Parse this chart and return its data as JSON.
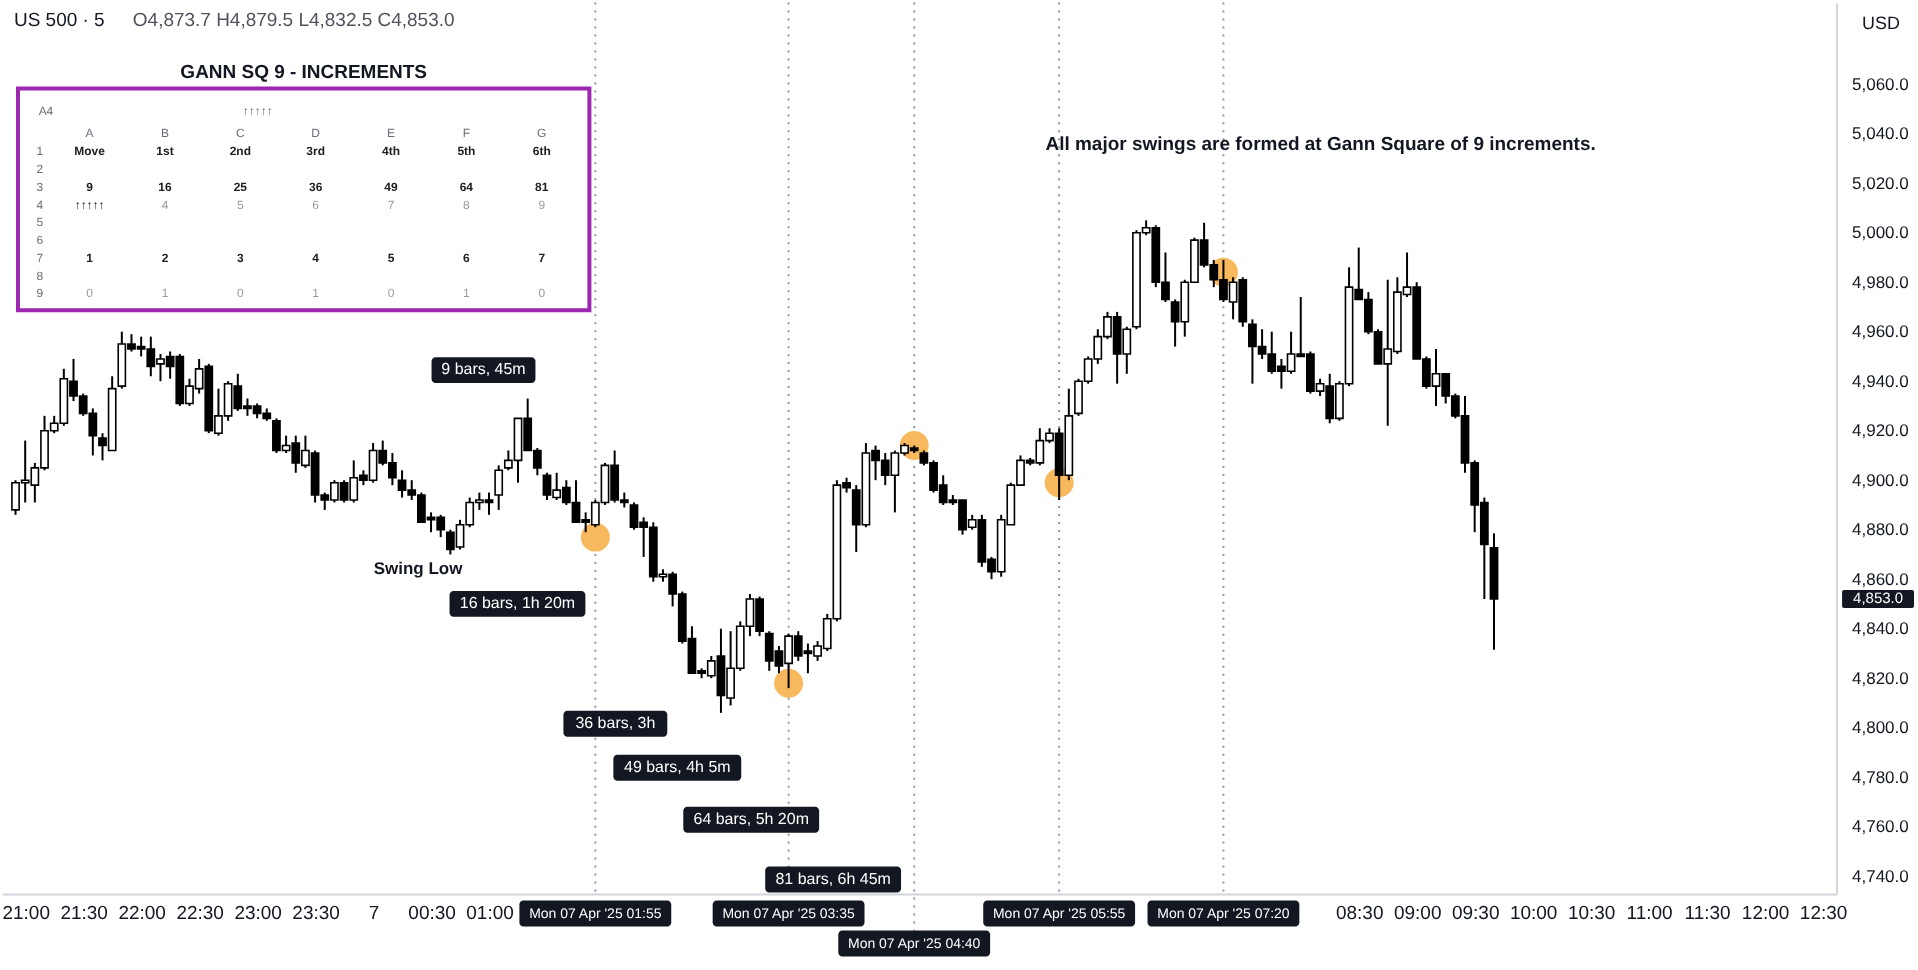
{
  "chart_data": {
    "type": "candlestick",
    "title": "US 500 · 5",
    "subtitle": "O4,873.7  H4,879.5  L4,832.5  C4,853.0",
    "ylabel": "USD",
    "color": "#000000",
    "x": [
      "2025-04-06T20:55",
      "2025-04-06T21:00",
      "2025-04-06T21:05",
      "2025-04-06T21:10",
      "2025-04-06T21:15",
      "2025-04-06T21:20",
      "2025-04-06T21:25",
      "2025-04-06T21:30",
      "2025-04-06T21:35",
      "2025-04-06T21:40",
      "2025-04-06T21:45",
      "2025-04-06T21:50",
      "2025-04-06T21:55",
      "2025-04-06T22:00",
      "2025-04-06T22:05",
      "2025-04-06T22:10",
      "2025-04-06T22:15",
      "2025-04-06T22:20",
      "2025-04-06T22:25",
      "2025-04-06T22:30",
      "2025-04-06T22:35",
      "2025-04-06T22:40",
      "2025-04-06T22:45",
      "2025-04-06T22:50",
      "2025-04-06T22:55",
      "2025-04-06T23:00",
      "2025-04-06T23:05",
      "2025-04-06T23:10",
      "2025-04-06T23:15",
      "2025-04-06T23:20",
      "2025-04-06T23:25",
      "2025-04-06T23:30",
      "2025-04-06T23:35",
      "2025-04-06T23:40",
      "2025-04-06T23:45",
      "2025-04-06T23:50",
      "2025-04-06T23:55",
      "2025-04-07T00:00",
      "2025-04-07T00:05",
      "2025-04-07T00:10",
      "2025-04-07T00:15",
      "2025-04-07T00:20",
      "2025-04-07T00:25",
      "2025-04-07T00:30",
      "2025-04-07T00:35",
      "2025-04-07T00:40",
      "2025-04-07T00:45",
      "2025-04-07T00:50",
      "2025-04-07T00:55",
      "2025-04-07T01:00",
      "2025-04-07T01:05",
      "2025-04-07T01:10",
      "2025-04-07T01:15",
      "2025-04-07T01:20",
      "2025-04-07T01:25",
      "2025-04-07T01:30",
      "2025-04-07T01:35",
      "2025-04-07T01:40",
      "2025-04-07T01:45",
      "2025-04-07T01:50",
      "2025-04-07T01:55",
      "2025-04-07T02:00",
      "2025-04-07T02:05",
      "2025-04-07T02:10",
      "2025-04-07T02:15",
      "2025-04-07T02:20",
      "2025-04-07T02:25",
      "2025-04-07T02:30",
      "2025-04-07T02:35",
      "2025-04-07T02:40",
      "2025-04-07T02:45",
      "2025-04-07T02:50",
      "2025-04-07T02:55",
      "2025-04-07T03:00",
      "2025-04-07T03:05",
      "2025-04-07T03:10",
      "2025-04-07T03:15",
      "2025-04-07T03:20",
      "2025-04-07T03:25",
      "2025-04-07T03:30",
      "2025-04-07T03:35",
      "2025-04-07T03:40",
      "2025-04-07T03:45",
      "2025-04-07T03:50",
      "2025-04-07T03:55",
      "2025-04-07T04:00",
      "2025-04-07T04:05",
      "2025-04-07T04:10",
      "2025-04-07T04:15",
      "2025-04-07T04:20",
      "2025-04-07T04:25",
      "2025-04-07T04:30",
      "2025-04-07T04:35",
      "2025-04-07T04:40",
      "2025-04-07T04:45",
      "2025-04-07T04:50",
      "2025-04-07T04:55",
      "2025-04-07T05:00",
      "2025-04-07T05:05",
      "2025-04-07T05:10",
      "2025-04-07T05:15",
      "2025-04-07T05:20",
      "2025-04-07T05:25",
      "2025-04-07T05:30",
      "2025-04-07T05:35",
      "2025-04-07T05:40",
      "2025-04-07T05:45",
      "2025-04-07T05:50",
      "2025-04-07T05:55",
      "2025-04-07T06:00",
      "2025-04-07T06:05",
      "2025-04-07T06:10",
      "2025-04-07T06:15",
      "2025-04-07T06:20",
      "2025-04-07T06:25",
      "2025-04-07T06:30",
      "2025-04-07T06:35",
      "2025-04-07T06:40",
      "2025-04-07T06:45",
      "2025-04-07T06:50",
      "2025-04-07T06:55",
      "2025-04-07T07:00",
      "2025-04-07T07:05",
      "2025-04-07T07:10",
      "2025-04-07T07:15",
      "2025-04-07T07:20",
      "2025-04-07T07:25",
      "2025-04-07T07:30",
      "2025-04-07T07:35",
      "2025-04-07T07:40",
      "2025-04-07T07:45",
      "2025-04-07T07:50",
      "2025-04-07T07:55",
      "2025-04-07T08:00",
      "2025-04-07T08:05",
      "2025-04-07T08:10",
      "2025-04-07T08:15",
      "2025-04-07T08:20",
      "2025-04-07T08:25",
      "2025-04-07T08:30",
      "2025-04-07T08:35",
      "2025-04-07T08:40",
      "2025-04-07T08:45",
      "2025-04-07T08:50",
      "2025-04-07T08:55",
      "2025-04-07T09:00",
      "2025-04-07T09:05",
      "2025-04-07T09:10",
      "2025-04-07T09:15",
      "2025-04-07T09:20",
      "2025-04-07T09:25",
      "2025-04-07T09:30",
      "2025-04-07T09:35",
      "2025-04-07T09:40"
    ],
    "ohlc": [
      [
        4889,
        4901,
        4887,
        4900
      ],
      [
        4900,
        4917,
        4892,
        4901
      ],
      [
        4899,
        4908,
        4892,
        4906
      ],
      [
        4906,
        4927,
        4905,
        4921
      ],
      [
        4921,
        4927,
        4920,
        4924
      ],
      [
        4924,
        4946,
        4923,
        4942
      ],
      [
        4941,
        4950,
        4933,
        4935
      ],
      [
        4935,
        4936,
        4927,
        4928
      ],
      [
        4928,
        4930,
        4911,
        4919
      ],
      [
        4918,
        4920,
        4909,
        4915
      ],
      [
        4913,
        4943,
        4913,
        4938
      ],
      [
        4939,
        4961,
        4938,
        4956
      ],
      [
        4956,
        4960,
        4953,
        4954
      ],
      [
        4955,
        4959,
        4951,
        4954
      ],
      [
        4954,
        4959,
        4943,
        4947
      ],
      [
        4948,
        4952,
        4941,
        4950
      ],
      [
        4951,
        4953,
        4942,
        4947
      ],
      [
        4951,
        4952,
        4931,
        4932
      ],
      [
        4932,
        4942,
        4931,
        4939
      ],
      [
        4938,
        4950,
        4936,
        4946
      ],
      [
        4947,
        4948,
        4920,
        4921
      ],
      [
        4920,
        4938,
        4919,
        4927
      ],
      [
        4927,
        4941,
        4925,
        4940
      ],
      [
        4939,
        4944,
        4929,
        4930
      ],
      [
        4931,
        4934,
        4927,
        4930
      ],
      [
        4931,
        4932,
        4926,
        4928
      ],
      [
        4928,
        4930,
        4925,
        4926
      ],
      [
        4925,
        4926,
        4912,
        4913
      ],
      [
        4913,
        4919,
        4912,
        4915
      ],
      [
        4916,
        4919,
        4904,
        4908
      ],
      [
        4907,
        4919,
        4906,
        4913
      ],
      [
        4912,
        4913,
        4892,
        4895
      ],
      [
        4895,
        4896,
        4889,
        4893
      ],
      [
        4893,
        4901,
        4892,
        4900
      ],
      [
        4900,
        4901,
        4892,
        4893
      ],
      [
        4893,
        4909,
        4892,
        4902
      ],
      [
        4903,
        4905,
        4899,
        4901
      ],
      [
        4901,
        4916,
        4900,
        4913
      ],
      [
        4913,
        4917,
        4907,
        4908
      ],
      [
        4908,
        4912,
        4899,
        4902
      ],
      [
        4901,
        4905,
        4894,
        4897
      ],
      [
        4897,
        4901,
        4893,
        4895
      ],
      [
        4895,
        4896,
        4884,
        4884
      ],
      [
        4886,
        4888,
        4880,
        4885
      ],
      [
        4886,
        4887,
        4878,
        4881
      ],
      [
        4880,
        4881,
        4871,
        4873
      ],
      [
        4874,
        4885,
        4873,
        4883
      ],
      [
        4883,
        4894,
        4882,
        4892
      ],
      [
        4892,
        4896,
        4889,
        4893
      ],
      [
        4893,
        4896,
        4887,
        4892
      ],
      [
        4895,
        4907,
        4889,
        4905
      ],
      [
        4906,
        4913,
        4905,
        4909
      ],
      [
        4909,
        4926,
        4900,
        4926
      ],
      [
        4926,
        4934,
        4913,
        4913
      ],
      [
        4913,
        4914,
        4903,
        4906
      ],
      [
        4903,
        4904,
        4893,
        4895
      ],
      [
        4894,
        4904,
        4893,
        4897
      ],
      [
        4898,
        4901,
        4891,
        4892
      ],
      [
        4892,
        4901,
        4884,
        4884
      ],
      [
        4885,
        4888,
        4880,
        4884
      ],
      [
        4883,
        4893,
        4882,
        4892
      ],
      [
        4892,
        4908,
        4891,
        4907
      ],
      [
        4907,
        4913,
        4892,
        4893
      ],
      [
        4893,
        4896,
        4890,
        4892
      ],
      [
        4891,
        4892,
        4881,
        4882
      ],
      [
        4884,
        4886,
        4870,
        4882
      ],
      [
        4882,
        4884,
        4860,
        4862
      ],
      [
        4862,
        4865,
        4860,
        4863
      ],
      [
        4863,
        4864,
        4850,
        4855
      ],
      [
        4855,
        4856,
        4835,
        4836
      ],
      [
        4837,
        4842,
        4823,
        4823
      ],
      [
        4824,
        4825,
        4821,
        4823
      ],
      [
        4822,
        4830,
        4821,
        4828
      ],
      [
        4830,
        4841,
        4807,
        4814
      ],
      [
        4813,
        4840,
        4810,
        4825
      ],
      [
        4825,
        4844,
        4824,
        4842
      ],
      [
        4842,
        4855,
        4838,
        4853
      ],
      [
        4853,
        4854,
        4838,
        4840
      ],
      [
        4839,
        4840,
        4824,
        4828
      ],
      [
        4832,
        4834,
        4823,
        4826
      ],
      [
        4827,
        4839,
        4817,
        4838
      ],
      [
        4838,
        4840,
        4828,
        4830
      ],
      [
        4832,
        4835,
        4823,
        4831
      ],
      [
        4830,
        4836,
        4828,
        4834
      ],
      [
        4833,
        4847,
        4832,
        4845
      ],
      [
        4845,
        4901,
        4844,
        4899
      ],
      [
        4900,
        4902,
        4896,
        4898
      ],
      [
        4897,
        4899,
        4872,
        4883
      ],
      [
        4883,
        4916,
        4882,
        4912
      ],
      [
        4913,
        4915,
        4901,
        4909
      ],
      [
        4909,
        4912,
        4899,
        4903
      ],
      [
        4903,
        4913,
        4888,
        4912
      ],
      [
        4912,
        4916,
        4911,
        4915
      ],
      [
        4914,
        4915,
        4912,
        4913
      ],
      [
        4912,
        4913,
        4907,
        4908
      ],
      [
        4908,
        4909,
        4896,
        4897
      ],
      [
        4899,
        4903,
        4891,
        4892
      ],
      [
        4893,
        4895,
        4891,
        4892
      ],
      [
        4893,
        4893,
        4879,
        4881
      ],
      [
        4882,
        4887,
        4881,
        4885
      ],
      [
        4885,
        4887,
        4866,
        4868
      ],
      [
        4869,
        4870,
        4861,
        4864
      ],
      [
        4864,
        4887,
        4862,
        4885
      ],
      [
        4883,
        4900,
        4883,
        4899
      ],
      [
        4899,
        4911,
        4899,
        4909
      ],
      [
        4909,
        4910,
        4907,
        4908
      ],
      [
        4908,
        4922,
        4907,
        4917
      ],
      [
        4917,
        4922,
        4916,
        4920
      ],
      [
        4920,
        4922,
        4893,
        4903
      ],
      [
        4903,
        4938,
        4901,
        4927
      ],
      [
        4928,
        4942,
        4927,
        4941
      ],
      [
        4941,
        4951,
        4940,
        4950
      ],
      [
        4950,
        4962,
        4948,
        4959
      ],
      [
        4959,
        4969,
        4958,
        4967
      ],
      [
        4967,
        4969,
        4940,
        4952
      ],
      [
        4952,
        4963,
        4944,
        4962
      ],
      [
        4963,
        5002,
        4962,
        5001
      ],
      [
        5001,
        5006,
        5000,
        5003
      ],
      [
        5003,
        5004,
        4979,
        4981
      ],
      [
        4981,
        4993,
        4973,
        4974
      ],
      [
        4973,
        4974,
        4955,
        4965
      ],
      [
        4965,
        4982,
        4959,
        4981
      ],
      [
        4981,
        4999,
        4981,
        4998
      ],
      [
        4998,
        5005,
        4987,
        4988
      ],
      [
        4988,
        4990,
        4979,
        4982
      ],
      [
        4982,
        4990,
        4973,
        4974
      ],
      [
        4973,
        4983,
        4966,
        4981
      ],
      [
        4982,
        4983,
        4963,
        4965
      ],
      [
        4964,
        4966,
        4940,
        4955
      ],
      [
        4955,
        4962,
        4950,
        4952
      ],
      [
        4952,
        4961,
        4944,
        4945
      ],
      [
        4947,
        4950,
        4938,
        4945
      ],
      [
        4945,
        4961,
        4944,
        4952
      ],
      [
        4952,
        4975,
        4951,
        4951
      ],
      [
        4952,
        4953,
        4936,
        4937
      ],
      [
        4937,
        4942,
        4935,
        4940
      ],
      [
        4939,
        4944,
        4924,
        4926
      ],
      [
        4926,
        4941,
        4925,
        4940
      ],
      [
        4940,
        4987,
        4939,
        4979
      ],
      [
        4978,
        4995,
        4974,
        4974
      ],
      [
        4974,
        4977,
        4960,
        4961
      ],
      [
        4961,
        4962,
        4948,
        4948
      ],
      [
        4948,
        4982,
        4923,
        4954
      ],
      [
        4953,
        4983,
        4952,
        4977
      ],
      [
        4976,
        4993,
        4975,
        4979
      ],
      [
        4979,
        4981,
        4950,
        4950
      ],
      [
        4950,
        4951,
        4938,
        4939
      ],
      [
        4939,
        4954,
        4931,
        4944
      ],
      [
        4944,
        4944,
        4932,
        4935
      ],
      [
        4935,
        4936,
        4926,
        4927
      ],
      [
        4927,
        4935,
        4904,
        4908
      ],
      [
        4908,
        4909,
        4880,
        4891
      ],
      [
        4892,
        4894,
        4853,
        4875
      ],
      [
        4873.7,
        4879.5,
        4832.5,
        4853.0
      ]
    ],
    "series": [
      {
        "type": "scatter",
        "marker": "circle",
        "color": "#f7b85e",
        "x": [
          "2025-04-07T01:55",
          "2025-04-07T03:35",
          "2025-04-07T04:40",
          "2025-04-07T05:55",
          "2025-04-07T07:20"
        ],
        "values": [
          4878,
          4819,
          4915,
          4900,
          4985
        ]
      }
    ],
    "xlim": [
      "2025-04-06T20:48",
      "2025-04-07T12:37"
    ],
    "xticks": [
      {
        "value": "2025-04-06T21:00",
        "label": "21:00"
      },
      {
        "value": "2025-04-06T21:30",
        "label": "21:30"
      },
      {
        "value": "2025-04-06T22:00",
        "label": "22:00"
      },
      {
        "value": "2025-04-06T22:30",
        "label": "22:30"
      },
      {
        "value": "2025-04-06T23:00",
        "label": "23:00"
      },
      {
        "value": "2025-04-06T23:30",
        "label": "23:30"
      },
      {
        "value": "2025-04-07T00:00",
        "label": "7"
      },
      {
        "value": "2025-04-07T00:30",
        "label": "00:30"
      },
      {
        "value": "2025-04-07T01:00",
        "label": "01:00"
      },
      {
        "value": "2025-04-07T08:30",
        "label": "08:30"
      },
      {
        "value": "2025-04-07T09:00",
        "label": "09:00"
      },
      {
        "value": "2025-04-07T09:30",
        "label": "09:30"
      },
      {
        "value": "2025-04-07T10:00",
        "label": "10:00"
      },
      {
        "value": "2025-04-07T10:30",
        "label": "10:30"
      },
      {
        "value": "2025-04-07T11:00",
        "label": "11:00"
      },
      {
        "value": "2025-04-07T11:30",
        "label": "11:30"
      },
      {
        "value": "2025-04-07T12:00",
        "label": "12:00"
      },
      {
        "value": "2025-04-07T12:30",
        "label": "12:30"
      }
    ],
    "ylim": [
      4734,
      5094
    ],
    "yticks": [
      {
        "value": 4740,
        "label": "4,740.0"
      },
      {
        "value": 4760,
        "label": "4,760.0"
      },
      {
        "value": 4780,
        "label": "4,780.0"
      },
      {
        "value": 4800,
        "label": "4,800.0"
      },
      {
        "value": 4820,
        "label": "4,820.0"
      },
      {
        "value": 4840,
        "label": "4,840.0"
      },
      {
        "value": 4860,
        "label": "4,860.0"
      },
      {
        "value": 4880,
        "label": "4,880.0"
      },
      {
        "value": 4900,
        "label": "4,900.0"
      },
      {
        "value": 4920,
        "label": "4,920.0"
      },
      {
        "value": 4940,
        "label": "4,940.0"
      },
      {
        "value": 4960,
        "label": "4,960.0"
      },
      {
        "value": 4980,
        "label": "4,980.0"
      },
      {
        "value": 5000,
        "label": "5,000.0"
      },
      {
        "value": 5020,
        "label": "5,020.0"
      },
      {
        "value": 5040,
        "label": "5,040.0"
      },
      {
        "value": 5060,
        "label": "5,060.0"
      }
    ],
    "ref_lines": [
      {
        "axis": "x",
        "value": "2025-04-07T01:55",
        "label": "Mon 07 Apr '25 01:55",
        "color": "#9598a1",
        "line_style": "dotted"
      },
      {
        "axis": "x",
        "value": "2025-04-07T03:35",
        "label": "Mon 07 Apr '25 03:35",
        "color": "#9598a1",
        "line_style": "dotted"
      },
      {
        "axis": "x",
        "value": "2025-04-07T04:40",
        "label": "Mon 07 Apr '25 04:40",
        "color": "#9598a1",
        "line_style": "dotted"
      },
      {
        "axis": "x",
        "value": "2025-04-07T05:55",
        "label": "Mon 07 Apr '25 05:55",
        "color": "#9598a1",
        "line_style": "dotted"
      },
      {
        "axis": "x",
        "value": "2025-04-07T07:20",
        "label": "Mon 07 Apr '25 07:20",
        "color": "#9598a1",
        "line_style": "dotted"
      }
    ],
    "annotations": [
      "All major swings are formed at Gann Square of 9 increments.",
      "9 bars, 45m",
      {
        "text": "Swing Low",
        "x": "2025-04-07T00:40",
        "y": 4871
      },
      "16 bars, 1h 20m",
      "36 bars, 3h",
      "49 bars, 4h 5m",
      "64 bars, 5h 20m",
      "81 bars, 6h 45m",
      "4,853.0",
      "GANN SQ 9 - INCREMENTS",
      "A4",
      "↑↑↑↑↑",
      "A",
      "B",
      "C",
      "D",
      "E",
      "F",
      "G",
      "1",
      "2",
      "3",
      "4",
      "5",
      "6",
      "7",
      "8",
      "9",
      "Move",
      "1st",
      "2nd",
      "3rd",
      "4th",
      "5th",
      "6th",
      "9",
      "16",
      "25",
      "36",
      "49",
      "64",
      "81",
      "↑↑↑↑↑",
      "4",
      "5",
      "6",
      "7",
      "8",
      "9",
      "1",
      "2",
      "3",
      "4",
      "5",
      "6",
      "7",
      "0",
      "1",
      "0",
      "1",
      "0",
      "1",
      "0"
    ]
  }
}
